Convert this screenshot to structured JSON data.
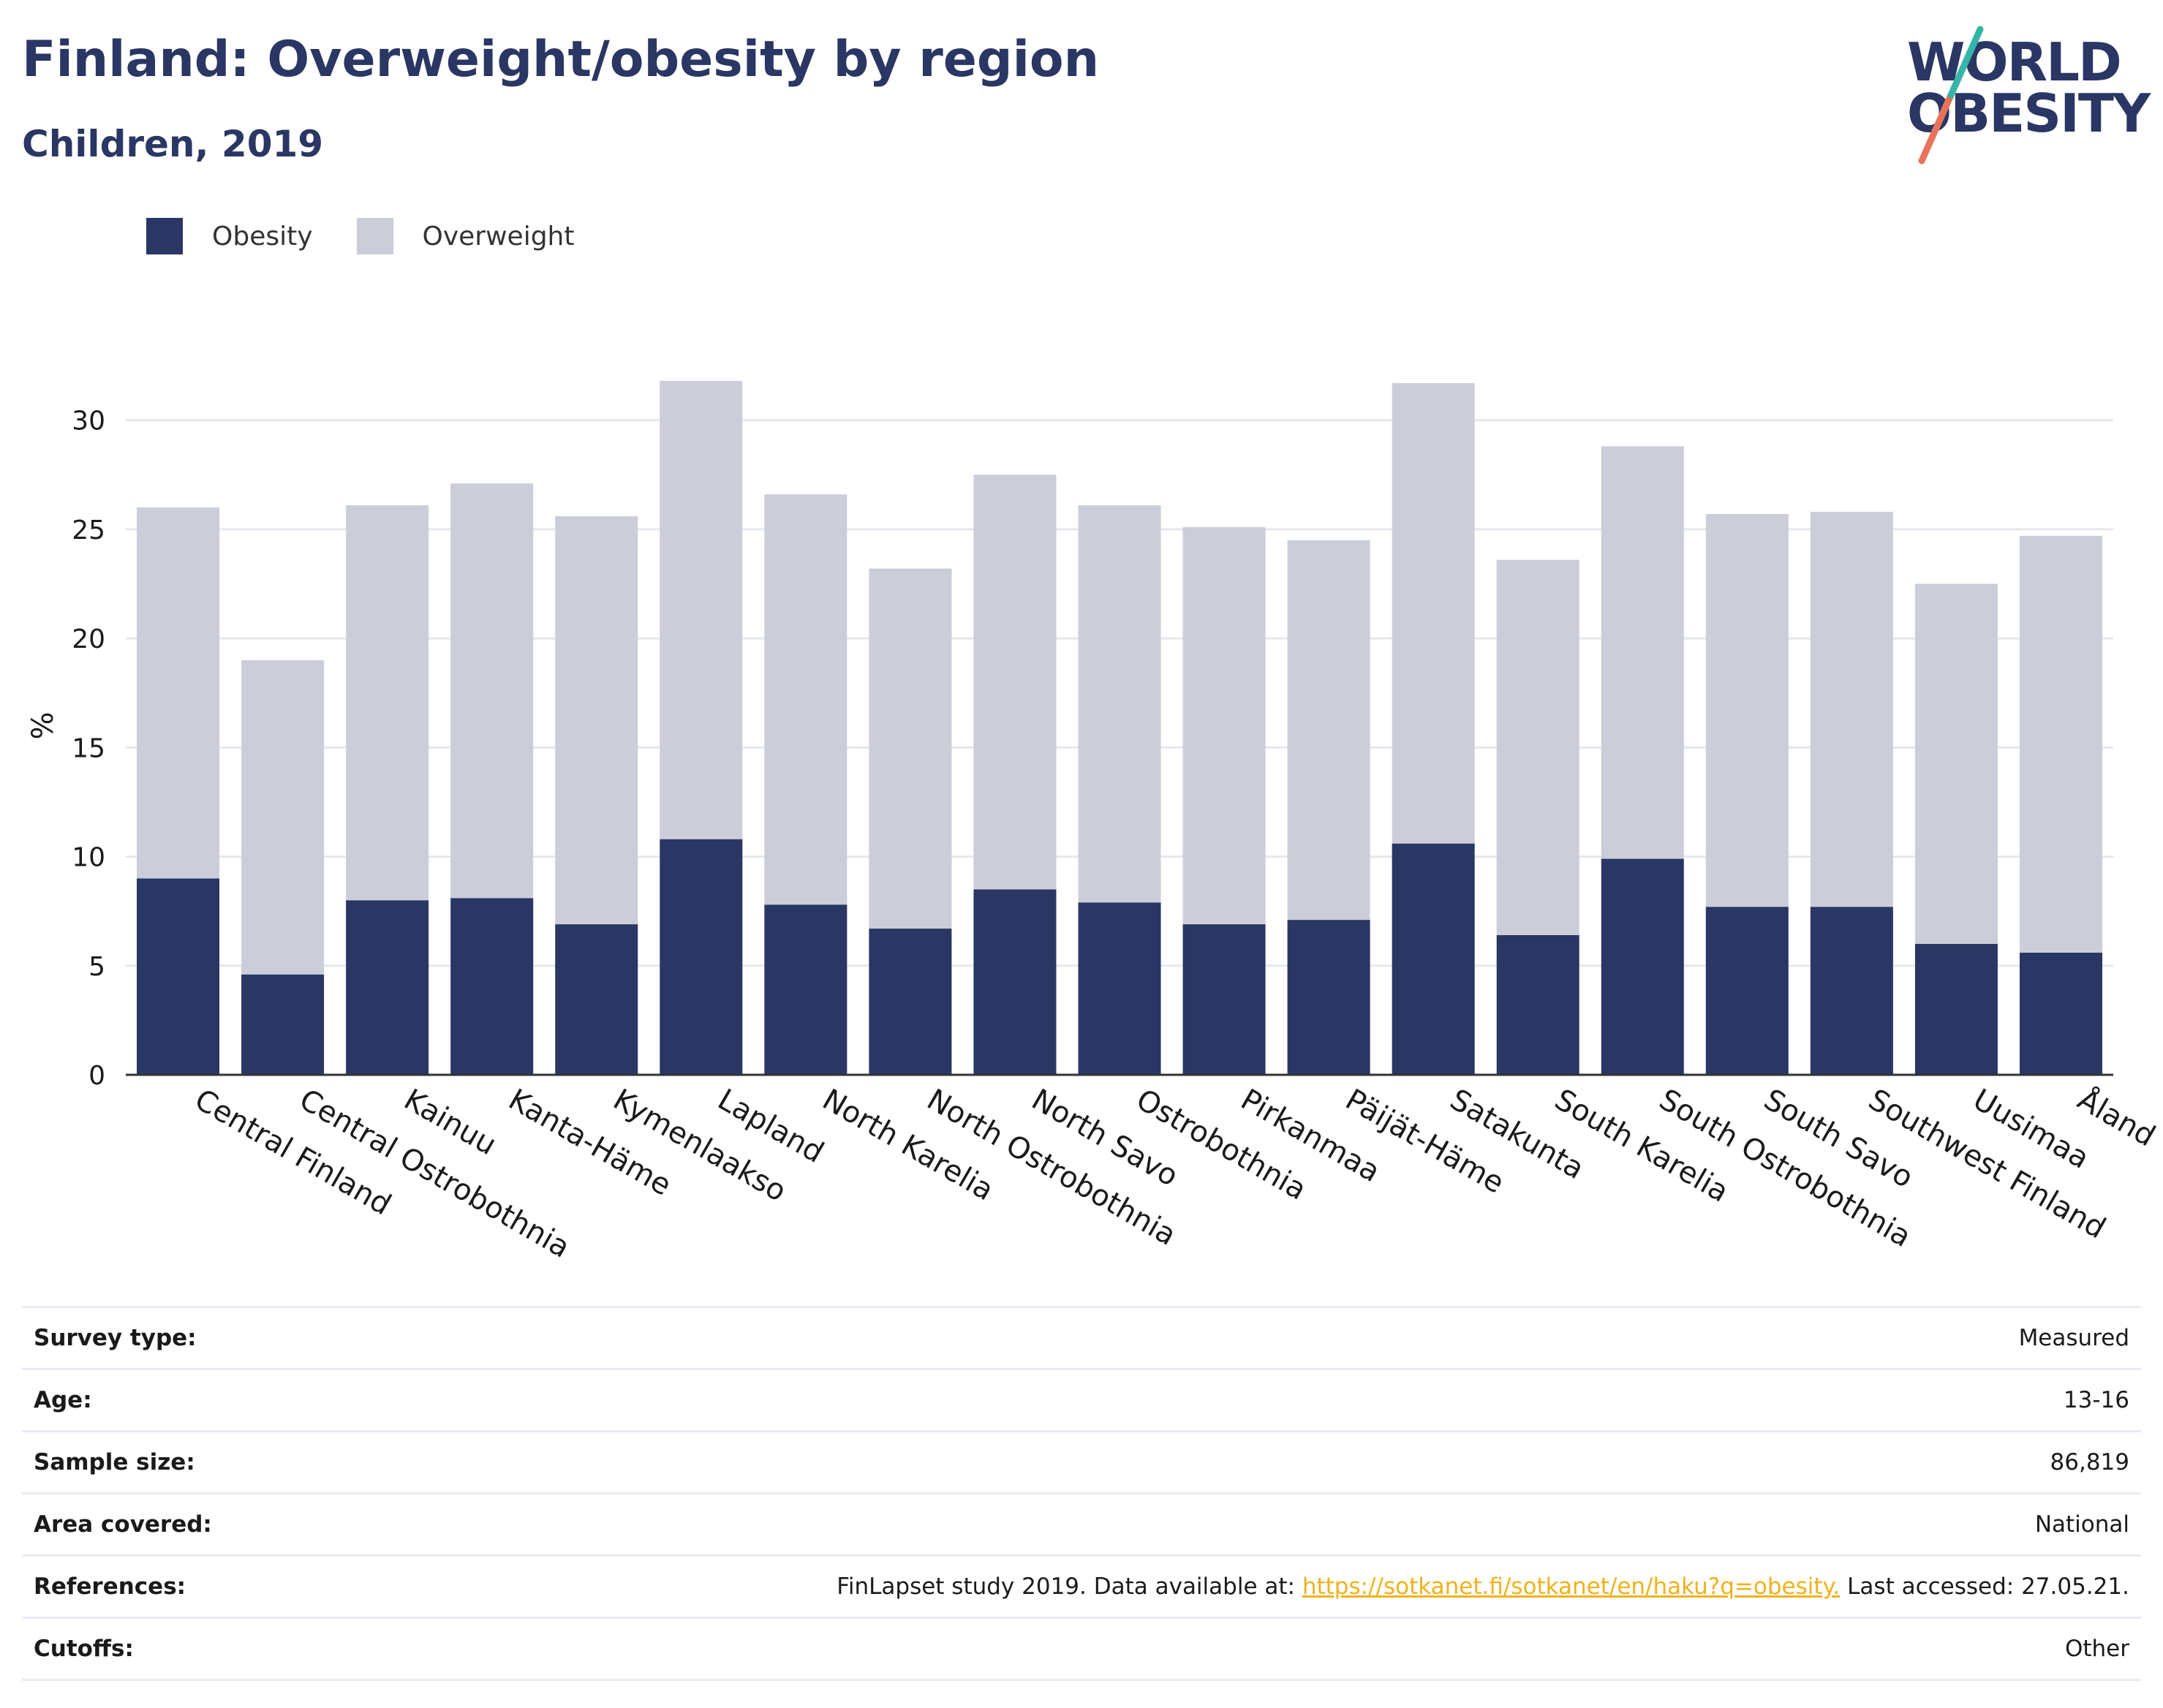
{
  "header": {
    "title": "Finland: Overweight/obesity by region",
    "subtitle": "Children, 2019",
    "logo_top": "WORLD",
    "logo_bottom": "OBESITY"
  },
  "legend": {
    "items": [
      {
        "label": "Obesity",
        "color": "#2a3663"
      },
      {
        "label": "Overweight",
        "color": "#cbcdd9"
      }
    ]
  },
  "chart_data": {
    "type": "bar",
    "stacked": true,
    "ylabel": "%",
    "ylim": [
      0,
      32
    ],
    "yticks": [
      0,
      5,
      10,
      15,
      20,
      25,
      30
    ],
    "grid": true,
    "legend_position": "top-left",
    "categories": [
      "Central Finland",
      "Central Ostrobothnia",
      "Kainuu",
      "Kanta-Häme",
      "Kymenlaakso",
      "Lapland",
      "North Karelia",
      "North Ostrobothnia",
      "North Savo",
      "Ostrobothnia",
      "Pirkanmaa",
      "Päijät-Häme",
      "Satakunta",
      "South Karelia",
      "South Ostrobothnia",
      "South Savo",
      "Southwest Finland",
      "Uusimaa",
      "Åland"
    ],
    "series": [
      {
        "name": "Obesity",
        "color": "#2a3663",
        "values": [
          9.0,
          4.6,
          8.0,
          8.1,
          6.9,
          10.8,
          7.8,
          6.7,
          8.5,
          7.9,
          6.9,
          7.1,
          10.6,
          6.4,
          9.9,
          7.7,
          7.7,
          6.0,
          5.6
        ]
      },
      {
        "name": "Overweight",
        "color": "#cbcdd9",
        "values": [
          17.0,
          14.4,
          18.1,
          19.0,
          18.7,
          21.0,
          18.8,
          16.5,
          19.0,
          18.2,
          18.2,
          17.4,
          21.1,
          17.2,
          18.9,
          18.0,
          18.1,
          16.5,
          19.1
        ]
      }
    ]
  },
  "meta": {
    "rows": [
      {
        "label": "Survey type:",
        "value": "Measured"
      },
      {
        "label": "Age:",
        "value": "13-16"
      },
      {
        "label": "Sample size:",
        "value": "86,819"
      },
      {
        "label": "Area covered:",
        "value": "National"
      }
    ],
    "references": {
      "label": "References:",
      "prefix": "FinLapset study 2019. Data available at: ",
      "link": "https://sotkanet.fi/sotkanet/en/haku?q=obesity.",
      "suffix": " Last accessed: 27.05.21."
    },
    "cutoffs": {
      "label": "Cutoffs:",
      "value": "Other"
    }
  }
}
